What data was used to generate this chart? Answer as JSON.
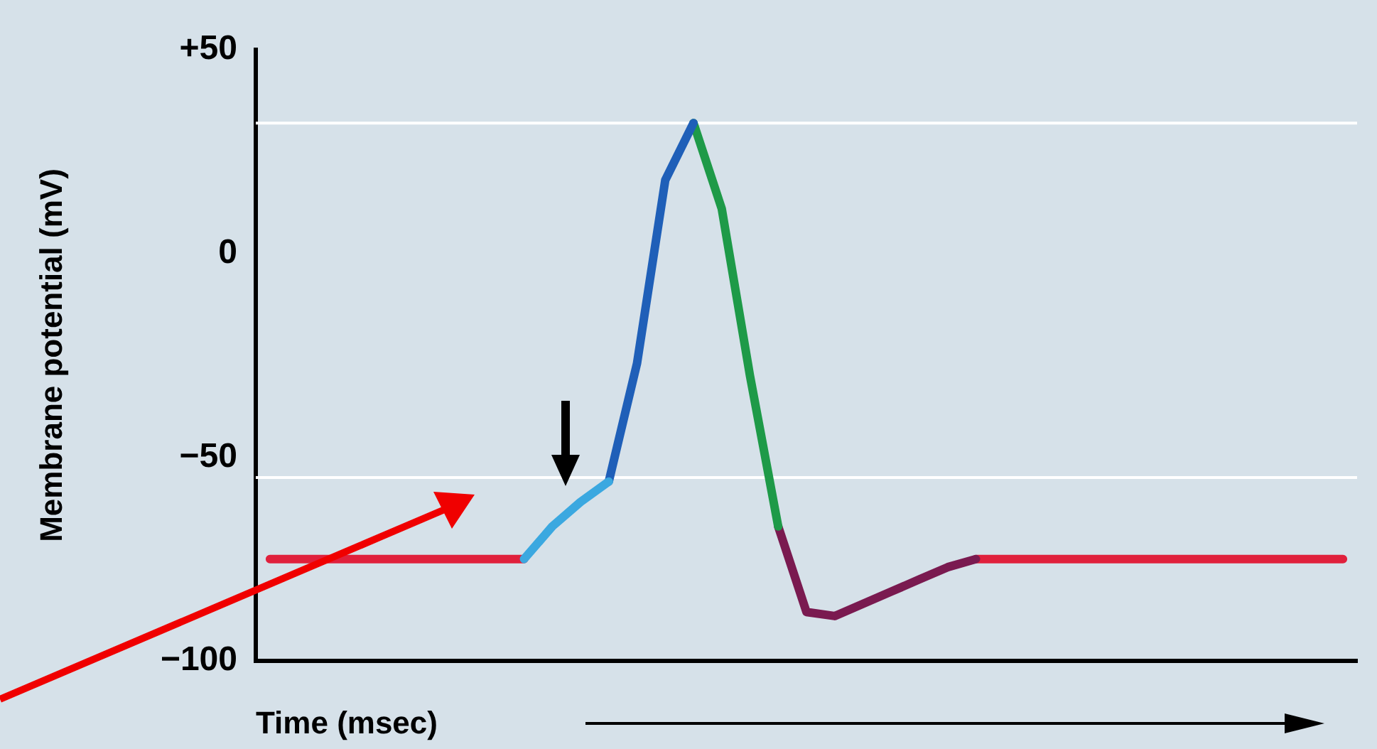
{
  "chart_data": {
    "type": "line",
    "xlabel": "Time (msec)",
    "ylabel": "Membrane potential (mV)",
    "categories": [
      null,
      null,
      null,
      null,
      null,
      null,
      null,
      null,
      null,
      null,
      null,
      null,
      null,
      null,
      null,
      null,
      null,
      null,
      null,
      null,
      null,
      null,
      null,
      null,
      null,
      null,
      null,
      null,
      null,
      null,
      null,
      null,
      null,
      null,
      null,
      null,
      null,
      null,
      null
    ],
    "series": [
      {
        "color": "#3ba8e0",
        "values": [
          null,
          null,
          null,
          null,
          null,
          null,
          null,
          null,
          null,
          -75,
          -67,
          -61,
          -56,
          null,
          null,
          null,
          null,
          null,
          null,
          null,
          null,
          null,
          null,
          null,
          null,
          null,
          null,
          null,
          null,
          null,
          null,
          null,
          null,
          null,
          null,
          null,
          null,
          null,
          null
        ]
      },
      {
        "color": "#1f5fb8",
        "values": [
          null,
          null,
          null,
          null,
          null,
          null,
          null,
          null,
          null,
          null,
          null,
          null,
          -56,
          -27,
          18,
          32,
          null,
          null,
          null,
          null,
          null,
          null,
          null,
          null,
          null,
          null,
          null,
          null,
          null,
          null,
          null,
          null,
          null,
          null,
          null,
          null,
          null,
          null,
          null
        ]
      },
      {
        "color": "#1e9a48",
        "values": [
          null,
          null,
          null,
          null,
          null,
          null,
          null,
          null,
          null,
          null,
          null,
          null,
          null,
          null,
          null,
          32,
          11,
          -30,
          -67,
          null,
          null,
          null,
          null,
          null,
          null,
          null,
          null,
          null,
          null,
          null,
          null,
          null,
          null,
          null,
          null,
          null,
          null,
          null,
          null
        ]
      },
      {
        "color": "#7a1a50",
        "values": [
          null,
          null,
          null,
          null,
          null,
          null,
          null,
          null,
          null,
          null,
          null,
          null,
          null,
          null,
          null,
          null,
          null,
          null,
          -67,
          -88,
          -89,
          -86,
          -83,
          -80,
          -77,
          -75,
          null,
          null,
          null,
          null,
          null,
          null,
          null,
          null,
          null,
          null,
          null,
          null,
          null
        ]
      },
      {
        "color": "#e0203c",
        "values": [
          -75,
          -75,
          -75,
          -75,
          -75,
          -75,
          -75,
          -75,
          -75,
          -75,
          null,
          null,
          null,
          null,
          null,
          null,
          null,
          null,
          null,
          null,
          null,
          null,
          null,
          null,
          null,
          -75,
          -75,
          -75,
          -75,
          -75,
          -75,
          -75,
          -75,
          -75,
          -75,
          -75,
          -75,
          -75,
          -75
        ]
      }
    ],
    "ylim": [
      -100,
      50
    ],
    "yticks": [
      {
        "value": 50,
        "label": "+50"
      },
      0,
      {
        "value": -50,
        "label": "−50"
      },
      {
        "value": -100,
        "label": "−100"
      }
    ],
    "ref_lines": [
      {
        "axis": "y",
        "value": 32,
        "color": "#ffffff"
      },
      {
        "axis": "y",
        "value": -55,
        "color": "#ffffff"
      }
    ],
    "grid": false,
    "legend": false,
    "tick_labels": "y",
    "marker": "none",
    "line_style": "solid"
  }
}
